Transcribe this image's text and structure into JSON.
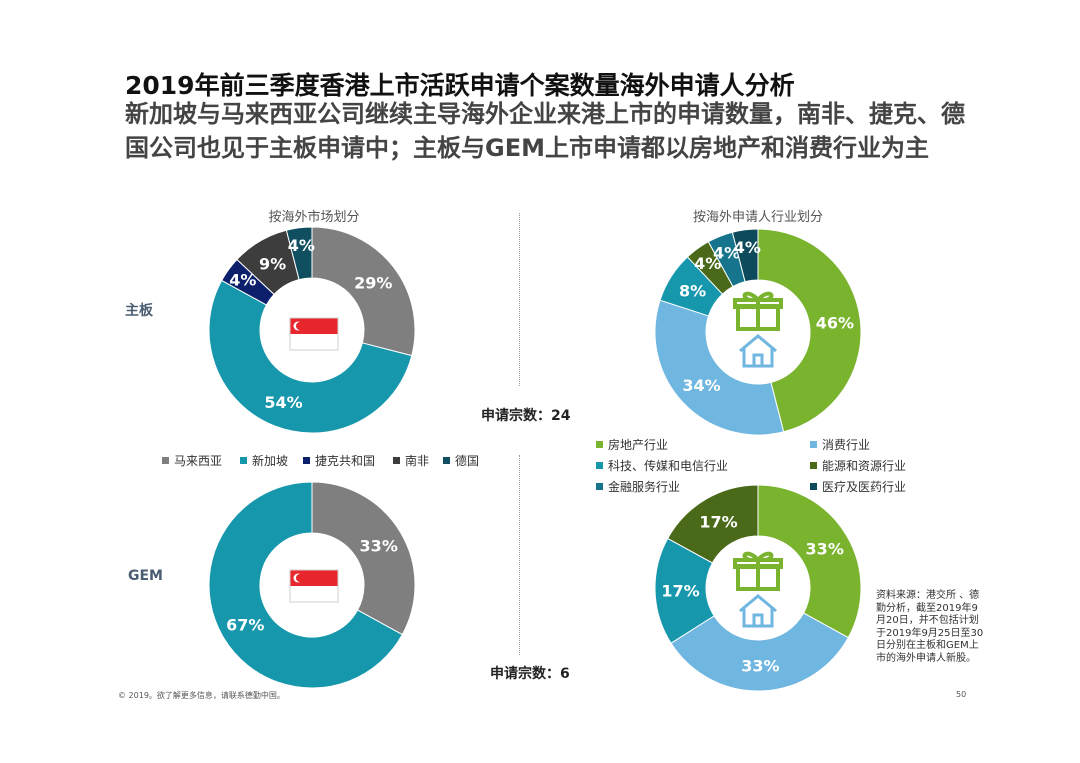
{
  "title": "2019年前三季度香港上市活跃申请个案数量海外申请人分析",
  "subtitle": "新加坡与马来西亚公司继续主导海外企业来港上市的申请数量，南非、捷克、德国公司也见于主板申请中；主板与GEM上市申请都以房地产和消费行业为主",
  "left_section_title": "按海外市场划分",
  "right_section_title": "按海外申请人行业划分",
  "row_labels": {
    "main": "主板",
    "gem": "GEM"
  },
  "counts": {
    "main": "申请宗数：24",
    "gem": "申请宗数：6"
  },
  "market_legend": [
    {
      "label": "马来西亚",
      "color": "#7f7f7f"
    },
    {
      "label": "新加坡",
      "color": "#1797ac"
    },
    {
      "label": "捷克共和国",
      "color": "#0b1f6b"
    },
    {
      "label": "南非",
      "color": "#3d3d3d"
    },
    {
      "label": "德国",
      "color": "#0f4f5f"
    }
  ],
  "industry_legend": [
    {
      "label": "房地产行业",
      "color": "#7ab32e"
    },
    {
      "label": "消费行业",
      "color": "#6fb6e0"
    },
    {
      "label": "科技、传媒和电信行业",
      "color": "#1797ac"
    },
    {
      "label": "能源和资源行业",
      "color": "#4a6a1a"
    },
    {
      "label": "金融服务行业",
      "color": "#16748c"
    },
    {
      "label": "医疗及医药行业",
      "color": "#0c4a5c"
    }
  ],
  "icons": {
    "market_center": "singapore-flag-icon",
    "industry_center": [
      "gift-icon",
      "house-icon"
    ]
  },
  "chart_data": [
    {
      "type": "pie",
      "name": "market-main",
      "categories": [
        "马来西亚",
        "新加坡",
        "捷克共和国",
        "南非",
        "德国"
      ],
      "values": [
        29,
        54,
        4,
        9,
        4
      ],
      "labels": [
        "29%",
        "54%",
        "4%",
        "9%",
        "4%"
      ],
      "colors": [
        "#7f7f7f",
        "#1797ac",
        "#0b1f6b",
        "#3d3d3d",
        "#0f4f5f"
      ]
    },
    {
      "type": "pie",
      "name": "market-gem",
      "categories": [
        "马来西亚",
        "新加坡"
      ],
      "values": [
        33,
        67
      ],
      "labels": [
        "33%",
        "67%"
      ],
      "colors": [
        "#7f7f7f",
        "#1797ac"
      ]
    },
    {
      "type": "pie",
      "name": "industry-main",
      "categories": [
        "房地产行业",
        "消费行业",
        "科技、传媒和电信行业",
        "能源和资源行业",
        "金融服务行业",
        "医疗及医药行业"
      ],
      "values": [
        46,
        34,
        8,
        4,
        4,
        4
      ],
      "labels": [
        "46%",
        "34%",
        "8%",
        "4%",
        "4%",
        "4%"
      ],
      "colors": [
        "#7ab32e",
        "#6fb6e0",
        "#1797ac",
        "#4a6a1a",
        "#16748c",
        "#0c4a5c"
      ]
    },
    {
      "type": "pie",
      "name": "industry-gem",
      "categories": [
        "房地产行业",
        "消费行业",
        "科技、传媒和电信行业",
        "能源和资源行业"
      ],
      "values": [
        33,
        33,
        17,
        17
      ],
      "labels": [
        "33%",
        "33%",
        "17%",
        "17%"
      ],
      "colors": [
        "#7ab32e",
        "#6fb6e0",
        "#1797ac",
        "#4a6a1a"
      ]
    }
  ],
  "source_note": "资料来源：港交所 、德勤分析，截至2019年9月20日，并不包括计划于2019年9月25日至30日分别在主板和GEM上市的海外申请人新股。",
  "footer": "© 2019。欲了解更多信息，请联系德勤中国。",
  "page_number": "50"
}
